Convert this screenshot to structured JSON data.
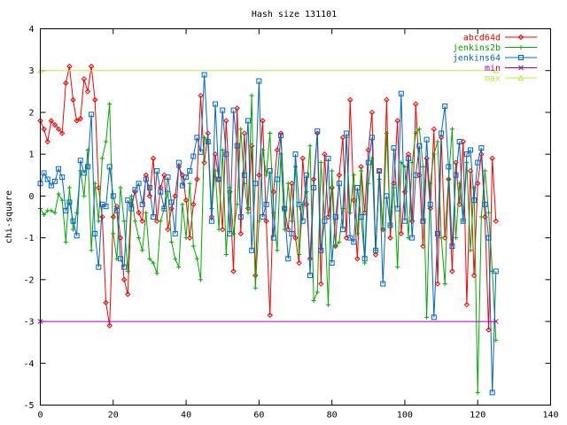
{
  "chart_data": {
    "type": "line",
    "title": "Hash size 131101",
    "xlabel": "",
    "ylabel": "chi-square",
    "xlim": [
      0,
      140
    ],
    "ylim": [
      -5,
      4
    ],
    "xticks": [
      0,
      20,
      40,
      60,
      80,
      100,
      120,
      140
    ],
    "yticks": [
      -5,
      -4,
      -3,
      -2,
      -1,
      0,
      1,
      2,
      3,
      4
    ],
    "legend_position": "top-right",
    "series": [
      {
        "name": "abcd64d",
        "color": "#ff0000",
        "marker": "diamond",
        "x": [
          0,
          1,
          2,
          3,
          4,
          5,
          6,
          7,
          8,
          9,
          10,
          11,
          12,
          13,
          14,
          15,
          16,
          17,
          18,
          19,
          20,
          21,
          22,
          23,
          24,
          25,
          26,
          27,
          28,
          29,
          30,
          31,
          32,
          33,
          34,
          35,
          36,
          37,
          38,
          39,
          40,
          41,
          42,
          43,
          44,
          45,
          46,
          47,
          48,
          49,
          50,
          51,
          52,
          53,
          54,
          55,
          56,
          57,
          58,
          59,
          60,
          61,
          62,
          63,
          64,
          65,
          66,
          67,
          68,
          69,
          70,
          71,
          72,
          73,
          74,
          75,
          76,
          77,
          78,
          79,
          80,
          81,
          82,
          83,
          84,
          85,
          86,
          87,
          88,
          89,
          90,
          91,
          92,
          93,
          94,
          95,
          96,
          97,
          98,
          99,
          100,
          101,
          102,
          103,
          104,
          105,
          106,
          107,
          108,
          109,
          110,
          111,
          112,
          113,
          114,
          115,
          116,
          117,
          118,
          119,
          120,
          121,
          122,
          123,
          124,
          125
        ],
        "y": [
          1.8,
          1.6,
          1.3,
          1.8,
          1.7,
          1.6,
          1.5,
          2.7,
          3.1,
          2.3,
          1.8,
          1.85,
          2.8,
          2.5,
          3.1,
          2.3,
          0.2,
          -0.5,
          -2.55,
          -3.1,
          -0.5,
          -0.25,
          -1.0,
          -2.0,
          -2.35,
          -0.2,
          0.1,
          -0.4,
          -0.6,
          0.5,
          0.0,
          0.9,
          -0.6,
          0.2,
          0.5,
          -0.8,
          -0.3,
          0.0,
          0.7,
          0.5,
          -0.1,
          -1.0,
          -0.2,
          0.4,
          2.4,
          0.8,
          1.5,
          -0.5,
          1.0,
          0.4,
          -0.8,
          1.8,
          0.1,
          -1.8,
          2.1,
          -0.9,
          1.5,
          -0.3,
          1.2,
          -1.9,
          0.5,
          1.8,
          -0.6,
          -2.85,
          0.1,
          1.1,
          1.5,
          -0.3,
          -0.8,
          0.3,
          -1.0,
          -1.6,
          0.9,
          -0.2,
          -1.5,
          0.4,
          1.5,
          -2.1,
          1.0,
          -0.5,
          0.2,
          -1.2,
          0.5,
          1.4,
          -1.0,
          2.3,
          -0.1,
          -1.5,
          0.7,
          -0.4,
          1.1,
          2.0,
          -1.4,
          0.6,
          -0.8,
          2.3,
          -1.0,
          0.3,
          1.8,
          -0.9,
          0.1,
          1.0,
          -0.6,
          2.2,
          0.5,
          -1.2,
          0.9,
          -0.3,
          1.6,
          -2.1,
          1.4,
          -1.0,
          0.4,
          -1.8,
          0.8,
          -0.2,
          1.3,
          -2.6,
          0.6,
          -1.9,
          0.3,
          1.0,
          -0.5,
          -3.2,
          0.9,
          -0.6
        ]
      },
      {
        "name": "jenkins2b",
        "color": "#00aa00",
        "marker": "plus",
        "x": [
          0,
          1,
          2,
          3,
          4,
          5,
          6,
          7,
          8,
          9,
          10,
          11,
          12,
          13,
          14,
          15,
          16,
          17,
          18,
          19,
          20,
          21,
          22,
          23,
          24,
          25,
          26,
          27,
          28,
          29,
          30,
          31,
          32,
          33,
          34,
          35,
          36,
          37,
          38,
          39,
          40,
          41,
          42,
          43,
          44,
          45,
          46,
          47,
          48,
          49,
          50,
          51,
          52,
          53,
          54,
          55,
          56,
          57,
          58,
          59,
          60,
          61,
          62,
          63,
          64,
          65,
          66,
          67,
          68,
          69,
          70,
          71,
          72,
          73,
          74,
          75,
          76,
          77,
          78,
          79,
          80,
          81,
          82,
          83,
          84,
          85,
          86,
          87,
          88,
          89,
          90,
          91,
          92,
          93,
          94,
          95,
          96,
          97,
          98,
          99,
          100,
          101,
          102,
          103,
          104,
          105,
          106,
          107,
          108,
          109,
          110,
          111,
          112,
          113,
          114,
          115,
          116,
          117,
          118,
          119,
          120,
          121,
          122,
          123,
          124,
          125
        ],
        "y": [
          -0.3,
          -0.45,
          -0.35,
          -0.35,
          -0.4,
          0.05,
          -0.1,
          -1.1,
          0.2,
          -0.8,
          -0.4,
          0.6,
          0.0,
          1.1,
          -1.3,
          0.3,
          -0.6,
          0.9,
          1.3,
          2.2,
          -0.9,
          -1.5,
          0.2,
          -0.6,
          -1.8,
          0.0,
          -0.6,
          -1.0,
          -1.3,
          -0.4,
          -1.5,
          -1.6,
          -1.85,
          -0.6,
          -0.3,
          0.1,
          -1.1,
          -1.5,
          -1.7,
          -0.2,
          -1.0,
          0.3,
          -1.2,
          -1.5,
          -2.0,
          1.4,
          1.3,
          -0.3,
          0.6,
          -0.8,
          1.1,
          -1.4,
          0.2,
          -0.9,
          -0.2,
          1.6,
          0.3,
          -0.4,
          2.4,
          -2.2,
          -0.6,
          1.1,
          0.5,
          1.5,
          -0.4,
          -1.3,
          1.0,
          -0.8,
          0.3,
          -0.6,
          0.7,
          -1.4,
          -0.2,
          0.1,
          1.2,
          -2.5,
          -2.3,
          0.8,
          -0.5,
          -2.6,
          0.6,
          -1.2,
          -1.1,
          -0.3,
          1.4,
          -0.4,
          0.5,
          -0.9,
          0.6,
          -1.6,
          0.3,
          0.9,
          -1.3,
          0.4,
          -0.8,
          1.5,
          -0.7,
          0.2,
          -1.7,
          0.8,
          0.7,
          -1.0,
          0.8,
          1.5,
          1.6,
          0.7,
          -2.9,
          0.3,
          1.0,
          1.3,
          -1.0,
          -2.1,
          0.4,
          1.6,
          -1.0,
          0.3,
          -0.6,
          0.8,
          -1.3,
          0.2,
          -4.7,
          -0.5,
          0.6,
          -0.4,
          -1.8,
          -3.45
        ]
      },
      {
        "name": "jenkins64",
        "color": "#0066cc",
        "marker": "square",
        "x": [
          0,
          1,
          2,
          3,
          4,
          5,
          6,
          7,
          8,
          9,
          10,
          11,
          12,
          13,
          14,
          15,
          16,
          17,
          18,
          19,
          20,
          21,
          22,
          23,
          24,
          25,
          26,
          27,
          28,
          29,
          30,
          31,
          32,
          33,
          34,
          35,
          36,
          37,
          38,
          39,
          40,
          41,
          42,
          43,
          44,
          45,
          46,
          47,
          48,
          49,
          50,
          51,
          52,
          53,
          54,
          55,
          56,
          57,
          58,
          59,
          60,
          61,
          62,
          63,
          64,
          65,
          66,
          67,
          68,
          69,
          70,
          71,
          72,
          73,
          74,
          75,
          76,
          77,
          78,
          79,
          80,
          81,
          82,
          83,
          84,
          85,
          86,
          87,
          88,
          89,
          90,
          91,
          92,
          93,
          94,
          95,
          96,
          97,
          98,
          99,
          100,
          101,
          102,
          103,
          104,
          105,
          106,
          107,
          108,
          109,
          110,
          111,
          112,
          113,
          114,
          115,
          116,
          117,
          118,
          119,
          120,
          121,
          122,
          123,
          124,
          125
        ],
        "y": [
          0.3,
          0.55,
          0.4,
          0.25,
          0.35,
          0.65,
          0.45,
          -0.35,
          -0.15,
          -0.6,
          -0.95,
          0.85,
          0.55,
          0.7,
          1.95,
          -0.9,
          -1.7,
          -0.2,
          -0.25,
          0.7,
          0.0,
          -0.35,
          -1.5,
          -1.7,
          -0.1,
          -0.3,
          0.15,
          0.3,
          -0.2,
          0.4,
          0.2,
          -0.5,
          0.6,
          0.1,
          -0.3,
          0.45,
          -0.15,
          -0.9,
          0.8,
          0.25,
          0.45,
          0.6,
          0.95,
          1.4,
          1.05,
          2.9,
          1.3,
          -0.6,
          2.2,
          0.4,
          2.05,
          1.0,
          -0.9,
          2.05,
          1.2,
          -0.5,
          0.5,
          1.8,
          -1.3,
          0.3,
          2.75,
          -0.5,
          -0.2,
          0.6,
          -1.0,
          0.4,
          1.45,
          -0.3,
          -1.5,
          -0.9,
          1.0,
          -0.2,
          -0.6,
          0.5,
          -1.9,
          0.2,
          1.55,
          -1.3,
          -0.6,
          0.9,
          -1.6,
          -0.5,
          0.3,
          -0.8,
          1.5,
          -1.0,
          -1.1,
          0.2,
          -0.5,
          -1.5,
          0.8,
          1.4,
          -1.3,
          0.6,
          -2.1,
          0.0,
          -0.7,
          1.15,
          -0.3,
          2.45,
          -0.6,
          0.9,
          -1.0,
          0.5,
          1.2,
          -0.6,
          1.35,
          -0.2,
          -2.9,
          -0.9,
          1.5,
          2.15,
          0.7,
          -1.2,
          0.5,
          1.3,
          -0.6,
          1.0,
          1.1,
          -0.1,
          0.8,
          1.15,
          -0.2,
          -1.0,
          -4.7,
          -1.8
        ]
      },
      {
        "name": "min",
        "color": "#aa00aa",
        "marker": "cross",
        "x": [
          0,
          125
        ],
        "y": [
          -3,
          -3
        ]
      },
      {
        "name": "max",
        "color": "#bbee44",
        "marker": "triangle",
        "x": [
          0,
          125
        ],
        "y": [
          3,
          3
        ]
      }
    ]
  }
}
